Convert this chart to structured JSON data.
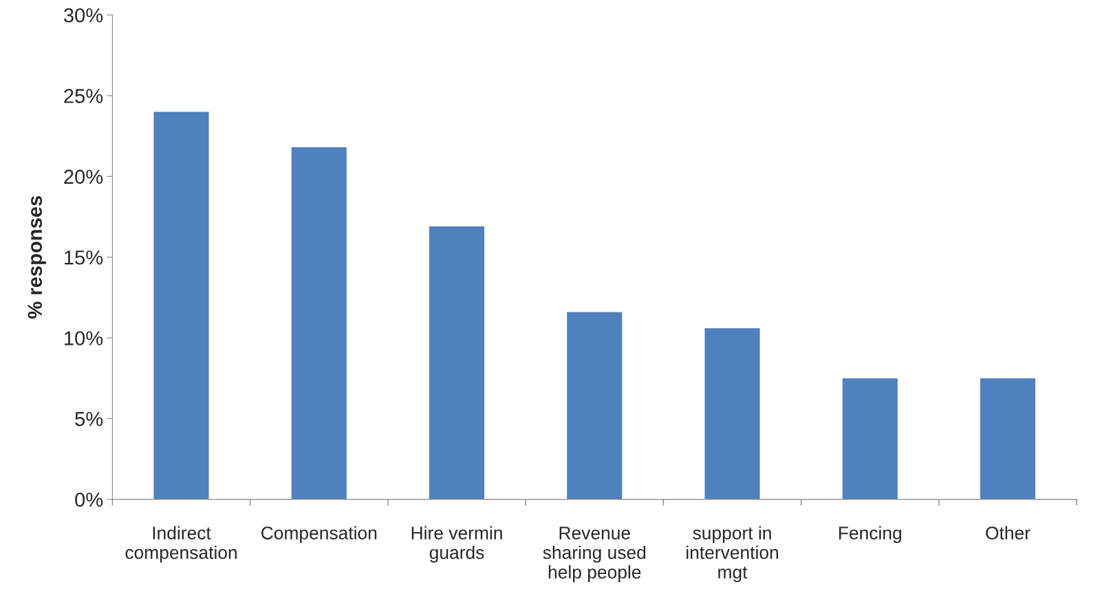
{
  "chart_data": {
    "type": "bar",
    "ylabel": "% responses",
    "categories": [
      "Indirect\ncompensation",
      "Compensation",
      "Hire vermin\nguards",
      "Revenue\nsharing used\nhelp people",
      "support in\nintervention\nmgt",
      "Fencing",
      "Other"
    ],
    "values": [
      24.0,
      21.8,
      16.9,
      11.6,
      10.6,
      7.5,
      7.5
    ],
    "color": "#4f81bd",
    "ylim": [
      0,
      30
    ],
    "yticks": [
      {
        "value": 0,
        "label": "0%"
      },
      {
        "value": 5,
        "label": "5%"
      },
      {
        "value": 10,
        "label": "10%"
      },
      {
        "value": 15,
        "label": "15%"
      },
      {
        "value": 20,
        "label": "20%"
      },
      {
        "value": 25,
        "label": "25%"
      },
      {
        "value": 30,
        "label": "30%"
      }
    ],
    "grid": false
  }
}
